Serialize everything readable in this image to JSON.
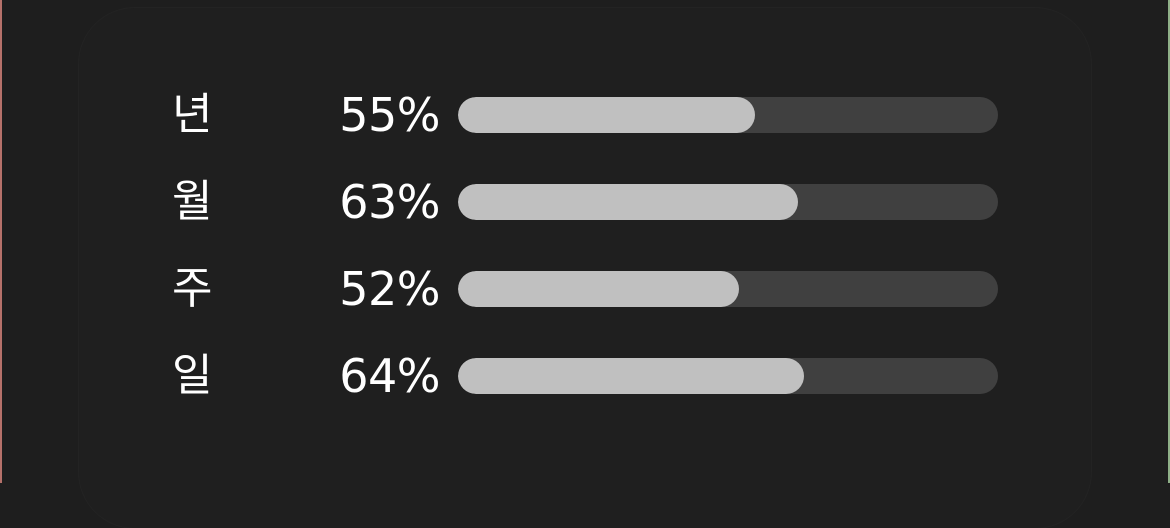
{
  "colors": {
    "background": "#1e1e1e",
    "card": "#1f1f1f",
    "text": "#ffffff",
    "bar_fill": "#c0c0c0",
    "bar_track": "#404040"
  },
  "progress": {
    "rows": [
      {
        "label": "년",
        "percent_text": "55%",
        "fraction": 0.55
      },
      {
        "label": "월",
        "percent_text": "63%",
        "fraction": 0.63
      },
      {
        "label": "주",
        "percent_text": "52%",
        "fraction": 0.52
      },
      {
        "label": "일",
        "percent_text": "64%",
        "fraction": 0.64
      }
    ]
  }
}
